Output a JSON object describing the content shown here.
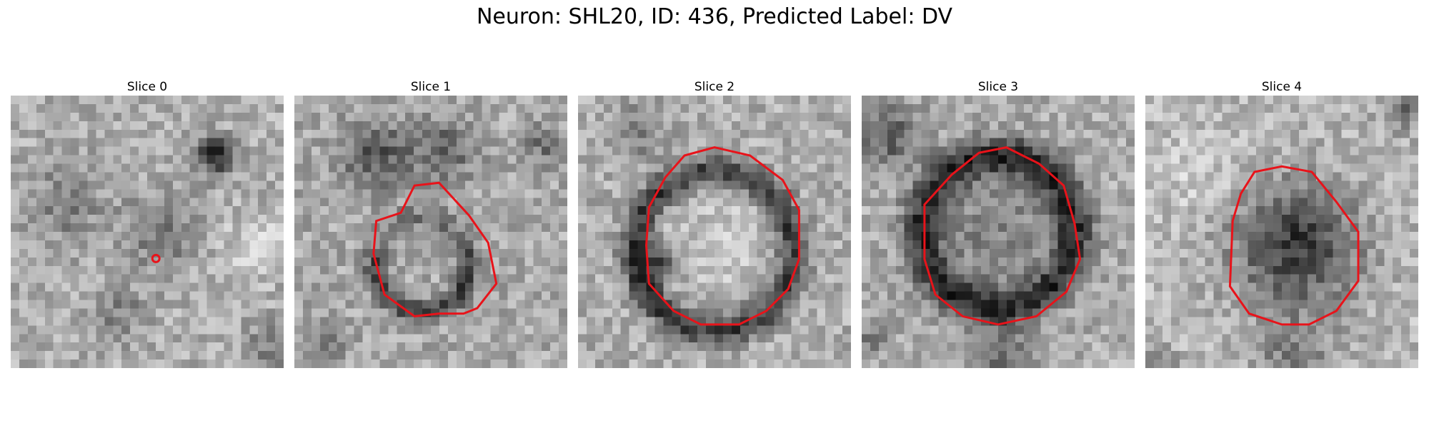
{
  "figure": {
    "title": "Neuron: SHL20, ID: 436, Predicted Label: DV"
  },
  "panels": [
    {
      "title": "Slice 0",
      "overlay": "point"
    },
    {
      "title": "Slice 1",
      "overlay": "contour"
    },
    {
      "title": "Slice 2",
      "overlay": "contour"
    },
    {
      "title": "Slice 3",
      "overlay": "contour"
    },
    {
      "title": "Slice 4",
      "overlay": "contour"
    }
  ],
  "colors": {
    "overlay": "#e8131a",
    "background": "#ffffff"
  },
  "colormap": "gray"
}
